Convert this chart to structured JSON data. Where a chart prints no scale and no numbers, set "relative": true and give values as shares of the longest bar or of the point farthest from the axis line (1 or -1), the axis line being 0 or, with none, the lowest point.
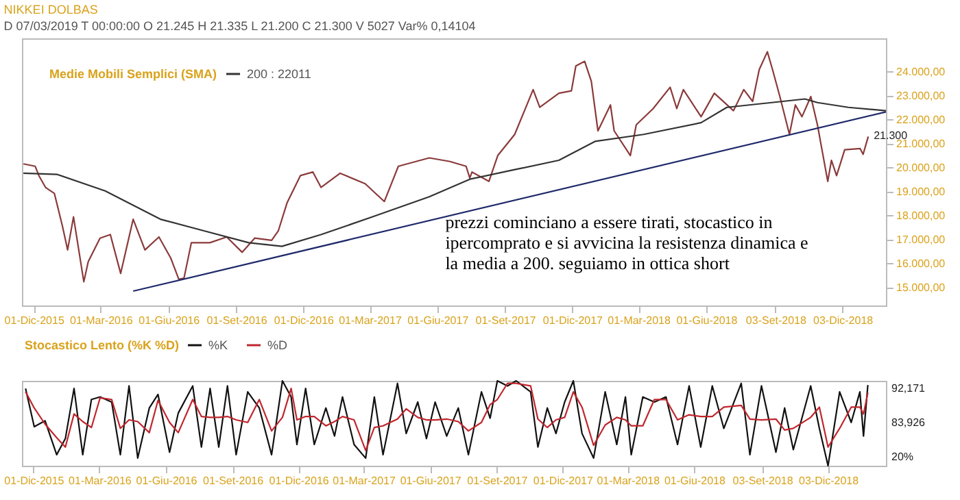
{
  "chart_data": [
    {
      "type": "line",
      "title": "NIKKEI DOLBAS",
      "subtitle": "D 07/03/2019 T 00:00:00 O 21.245 H 21.335 L 21.200 C 21.300 V 5027 Var% 0,14104",
      "legend_title": "Medie Mobili Semplici (SMA)",
      "legend": "top left",
      "grid": false,
      "xlim": [
        "2015-11-15",
        "2019-01-31"
      ],
      "xticks": [
        {
          "value": "2015-12-01",
          "label": "01-Dic-2015"
        },
        {
          "value": "2016-03-01",
          "label": "01-Mar-2016"
        },
        {
          "value": "2016-06-01",
          "label": "01-Giu-2016"
        },
        {
          "value": "2016-09-01",
          "label": "01-Set-2016"
        },
        {
          "value": "2016-12-01",
          "label": "01-Dic-2016"
        },
        {
          "value": "2017-03-01",
          "label": "01-Mar-2017"
        },
        {
          "value": "2017-06-01",
          "label": "01-Giu-2017"
        },
        {
          "value": "2017-09-01",
          "label": "01-Set-2017"
        },
        {
          "value": "2017-12-01",
          "label": "01-Dic-2017"
        },
        {
          "value": "2018-03-01",
          "label": "01-Mar-2018"
        },
        {
          "value": "2018-06-01",
          "label": "01-Giu-2018"
        },
        {
          "value": "2018-09-03",
          "label": "03-Set-2018"
        },
        {
          "value": "2018-12-03",
          "label": "03-Dic-2018"
        }
      ],
      "ylim": [
        14250,
        25400
      ],
      "yticks": [
        {
          "value": 15000,
          "label": "15.000,00"
        },
        {
          "value": 16000,
          "label": "16.000,00"
        },
        {
          "value": 17000,
          "label": "17.000,00"
        },
        {
          "value": 18000,
          "label": "18.000,00"
        },
        {
          "value": 19000,
          "label": "19.000,00"
        },
        {
          "value": 20000,
          "label": "20.000,00"
        },
        {
          "value": 21000,
          "label": "21.000,00"
        },
        {
          "value": 22000,
          "label": "22.000,00"
        },
        {
          "value": 23000,
          "label": "23.000,00"
        },
        {
          "value": 24000,
          "label": "24.000,00"
        }
      ],
      "series": [
        {
          "color": "#8b3a3a",
          "x": [
            "2015-11-17",
            "2015-12-03",
            "2015-12-08",
            "2015-12-17",
            "2015-12-29",
            "2016-01-09",
            "2016-01-16",
            "2016-01-24",
            "2016-02-07",
            "2016-02-13",
            "2016-02-29",
            "2016-03-14",
            "2016-03-28",
            "2016-04-14",
            "2016-04-30",
            "2016-05-19",
            "2016-06-04",
            "2016-06-15",
            "2016-06-22",
            "2016-07-02",
            "2016-07-27",
            "2016-08-19",
            "2016-09-09",
            "2016-09-26",
            "2016-10-19",
            "2016-10-28",
            "2016-11-09",
            "2016-11-27",
            "2016-12-14",
            "2016-12-25",
            "2017-01-20",
            "2017-02-23",
            "2017-03-21",
            "2017-04-09",
            "2017-05-21",
            "2017-06-18",
            "2017-07-10",
            "2017-07-15",
            "2017-07-18",
            "2017-08-10",
            "2017-08-22",
            "2017-09-14",
            "2017-10-09",
            "2017-10-18",
            "2017-11-13",
            "2017-11-30",
            "2017-12-06",
            "2017-12-18",
            "2017-12-27",
            "2018-01-05",
            "2018-01-22",
            "2018-01-27",
            "2018-02-18",
            "2018-02-26",
            "2018-03-21",
            "2018-04-13",
            "2018-04-22",
            "2018-05-01",
            "2018-05-25",
            "2018-06-12",
            "2018-07-08",
            "2018-07-22",
            "2018-08-03",
            "2018-08-12",
            "2018-08-23",
            "2018-08-30",
            "2018-09-09",
            "2018-09-22",
            "2018-09-30",
            "2018-10-09",
            "2018-10-21",
            "2018-10-30",
            "2018-11-13",
            "2018-11-18",
            "2018-11-25",
            "2018-12-06",
            "2018-12-27",
            "2018-12-31",
            "2019-01-07"
          ],
          "values": [
            20160,
            20060,
            19670,
            19180,
            18930,
            17560,
            16570,
            17950,
            15240,
            16080,
            17060,
            17210,
            15590,
            17850,
            16570,
            17110,
            16230,
            15340,
            15390,
            16870,
            16870,
            17110,
            16470,
            17060,
            16970,
            17360,
            18540,
            19670,
            19820,
            19180,
            19770,
            19330,
            18590,
            20060,
            20410,
            20260,
            20060,
            19570,
            19820,
            19430,
            20510,
            21390,
            23260,
            22520,
            23110,
            23210,
            24250,
            24440,
            23610,
            21540,
            22620,
            21540,
            20510,
            21790,
            22470,
            23360,
            22470,
            23260,
            22130,
            23110,
            22380,
            23260,
            22770,
            24100,
            24840,
            24100,
            22970,
            21390,
            22620,
            22130,
            22970,
            21790,
            19430,
            20310,
            19670,
            20750,
            20800,
            20560,
            21300
          ]
        },
        {
          "name": "200 : 22011",
          "color": "#333333",
          "x": [
            "2015-11-17",
            "2016-01-02",
            "2016-03-07",
            "2016-05-21",
            "2016-07-20",
            "2016-09-18",
            "2016-11-02",
            "2016-12-25",
            "2017-03-05",
            "2017-05-21",
            "2017-07-15",
            "2017-09-14",
            "2017-11-13",
            "2018-01-01",
            "2018-03-08",
            "2018-05-25",
            "2018-06-29",
            "2018-09-13",
            "2018-10-13",
            "2018-10-30",
            "2018-12-11",
            "2019-01-31"
          ],
          "values": [
            19770,
            19720,
            19030,
            17850,
            17360,
            16870,
            16720,
            17210,
            17950,
            18790,
            19520,
            19920,
            20310,
            21100,
            21390,
            21880,
            22520,
            22770,
            22870,
            22720,
            22520,
            22380
          ]
        },
        {
          "color": "#1f2a6b",
          "x": [
            "2016-04-14",
            "2019-01-31"
          ],
          "values": [
            14850,
            22330
          ]
        }
      ],
      "annotations": [
        {
          "text": "21.300",
          "x": "2019-01-07",
          "y": 21300
        },
        "prezzi cominciano a essere tirati, stocastico in ipercomprato e si avvicina la resistenza dinamica e la media a 200. seguiamo in ottica short"
      ]
    },
    {
      "type": "line",
      "legend_title": "Stocastico Lento (%K %D)",
      "legend": "top",
      "grid": false,
      "xlim": [
        "2015-11-15",
        "2019-02-21"
      ],
      "xticks": [
        {
          "value": "2015-12-01",
          "label": "01-Dic-2015"
        },
        {
          "value": "2016-03-01",
          "label": "01-Mar-2016"
        },
        {
          "value": "2016-06-01",
          "label": "01-Giu-2016"
        },
        {
          "value": "2016-09-01",
          "label": "01-Set-2016"
        },
        {
          "value": "2016-12-01",
          "label": "01-Dic-2016"
        },
        {
          "value": "2017-03-01",
          "label": "01-Mar-2017"
        },
        {
          "value": "2017-06-01",
          "label": "01-Giu-2017"
        },
        {
          "value": "2017-09-01",
          "label": "01-Set-2017"
        },
        {
          "value": "2017-12-01",
          "label": "01-Dic-2017"
        },
        {
          "value": "2018-03-01",
          "label": "01-Mar-2018"
        },
        {
          "value": "2018-06-01",
          "label": "01-Giu-2018"
        },
        {
          "value": "2018-09-03",
          "label": "03-Set-2018"
        },
        {
          "value": "2018-12-03",
          "label": "03-Dic-2018"
        }
      ],
      "relative": true,
      "x": [
        "2015-11-20",
        "2015-12-02",
        "2015-12-17",
        "2016-01-02",
        "2016-01-14",
        "2016-01-26",
        "2016-02-07",
        "2016-02-19",
        "2016-03-02",
        "2016-03-18",
        "2016-03-30",
        "2016-04-11",
        "2016-04-23",
        "2016-05-09",
        "2016-05-21",
        "2016-06-06",
        "2016-06-18",
        "2016-07-08",
        "2016-07-20",
        "2016-08-01",
        "2016-08-13",
        "2016-08-25",
        "2016-09-06",
        "2016-09-22",
        "2016-10-08",
        "2016-10-25",
        "2016-11-09",
        "2016-11-21",
        "2016-11-29",
        "2016-12-11",
        "2016-12-23",
        "2017-01-08",
        "2017-01-20",
        "2017-01-31",
        "2017-02-16",
        "2017-03-04",
        "2017-03-16",
        "2017-03-28",
        "2017-04-17",
        "2017-04-29",
        "2017-05-15",
        "2017-05-27",
        "2017-06-08",
        "2017-06-24",
        "2017-07-10",
        "2017-07-24",
        "2017-08-11",
        "2017-08-23",
        "2017-09-02",
        "2017-09-16",
        "2017-09-28",
        "2017-10-18",
        "2017-10-28",
        "2017-11-10",
        "2017-11-22",
        "2017-12-04",
        "2017-12-16",
        "2017-12-28",
        "2018-01-13",
        "2018-01-29",
        "2018-02-14",
        "2018-02-26",
        "2018-03-06",
        "2018-03-22",
        "2018-04-07",
        "2018-04-23",
        "2018-05-09",
        "2018-05-25",
        "2018-06-10",
        "2018-06-26",
        "2018-07-12",
        "2018-08-05",
        "2018-08-17",
        "2018-09-02",
        "2018-09-22",
        "2018-10-04",
        "2018-10-16",
        "2018-11-09",
        "2018-11-21",
        "2018-12-03",
        "2018-12-19",
        "2019-01-04",
        "2019-01-16",
        "2019-01-21",
        "2019-01-27"
      ],
      "series": [
        {
          "name": "%K",
          "color": "#111111",
          "values": [
            0.91,
            0.46,
            0.53,
            0.13,
            0.32,
            0.91,
            0.13,
            0.78,
            0.81,
            0.75,
            0.13,
            0.94,
            0.09,
            0.68,
            0.84,
            0.16,
            0.62,
            0.94,
            0.22,
            0.91,
            0.22,
            0.94,
            0.13,
            0.87,
            0.68,
            0.13,
            1,
            0.81,
            0.25,
            0.91,
            0.25,
            0.68,
            0.35,
            0.81,
            0.25,
            0.09,
            0.81,
            0.13,
            0.97,
            0.38,
            0.75,
            0.32,
            0.75,
            0.35,
            0.68,
            0.13,
            0.87,
            0.56,
            1,
            0.94,
            1,
            0.87,
            0.22,
            0.68,
            0.38,
            0.75,
            1,
            0.38,
            0.09,
            0.87,
            0.25,
            0.81,
            0.13,
            0.81,
            0.75,
            0.81,
            0.25,
            0.94,
            0.22,
            0.94,
            0.44,
            0.97,
            0.13,
            0.94,
            0.16,
            0.68,
            0.19,
            0.94,
            0.44,
            0,
            0.87,
            0.51,
            0.87,
            0.35,
            0.95
          ]
        },
        {
          "name": "%D",
          "color": "#c0262d",
          "values": [
            0.87,
            0.68,
            0.49,
            0.33,
            0.22,
            0.61,
            0.52,
            0.45,
            0.8,
            0.78,
            0.44,
            0.54,
            0.52,
            0.39,
            0.77,
            0.51,
            0.39,
            0.78,
            0.58,
            0.57,
            0.57,
            0.58,
            0.54,
            0.51,
            0.78,
            0.41,
            0.57,
            0.91,
            0.54,
            0.58,
            0.58,
            0.47,
            0.52,
            0.58,
            0.54,
            0.18,
            0.45,
            0.47,
            0.55,
            0.67,
            0.57,
            0.54,
            0.54,
            0.55,
            0.52,
            0.41,
            0.51,
            0.72,
            0.78,
            0.97,
            0.97,
            0.94,
            0.55,
            0.45,
            0.54,
            0.57,
            0.87,
            0.69,
            0.24,
            0.48,
            0.57,
            0.54,
            0.47,
            0.47,
            0.78,
            0.78,
            0.54,
            0.6,
            0.58,
            0.58,
            0.69,
            0.71,
            0.55,
            0.54,
            0.55,
            0.42,
            0.44,
            0.57,
            0.69,
            0.22,
            0.44,
            0.69,
            0.69,
            0.61,
            0.86
          ]
        }
      ],
      "annotations": [
        "92,171",
        "83,926",
        "20%"
      ]
    }
  ]
}
